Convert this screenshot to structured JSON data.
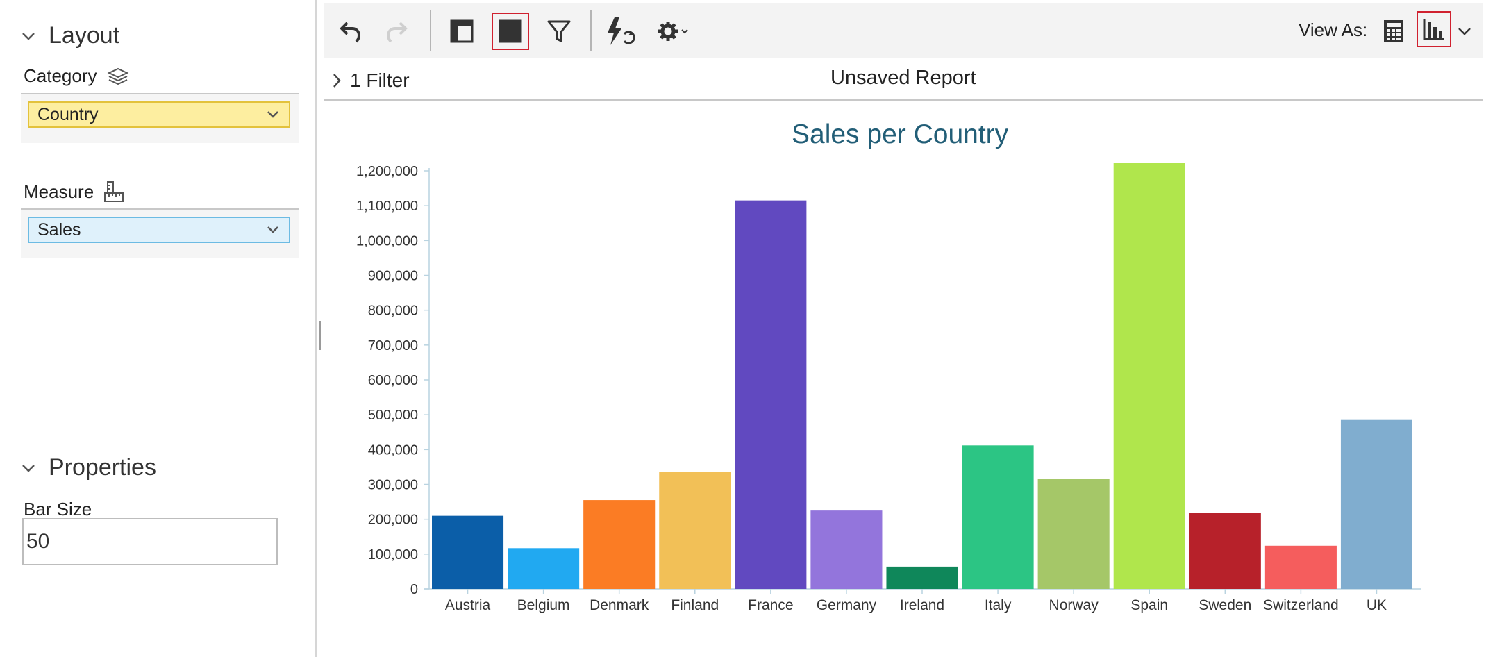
{
  "layout_panel": {
    "title": "Layout",
    "category_label": "Category",
    "category_value": "Country",
    "measure_label": "Measure",
    "measure_value": "Sales"
  },
  "properties_panel": {
    "title": "Properties",
    "bar_size_label": "Bar Size",
    "bar_size_value": "50"
  },
  "toolbar": {
    "view_as_label": "View As:",
    "buttons": [
      "undo-icon",
      "redo-icon",
      "layout-panel-icon",
      "properties-panel-icon",
      "filter-icon",
      "auto-refresh-icon",
      "settings-icon",
      "table-view-icon",
      "chart-view-icon",
      "chevron-down-icon"
    ],
    "active_color": "#d0212f"
  },
  "filter_bar": {
    "filter_text": "1 Filter",
    "report_title": "Unsaved Report"
  },
  "chart_data": {
    "type": "bar",
    "title": "Sales per Country",
    "xlabel": "",
    "ylabel": "",
    "categories": [
      "Austria",
      "Belgium",
      "Denmark",
      "Finland",
      "France",
      "Germany",
      "Ireland",
      "Italy",
      "Norway",
      "Spain",
      "Sweden",
      "Switzerland",
      "UK"
    ],
    "values": [
      210000,
      117000,
      255000,
      335000,
      1115000,
      225000,
      64000,
      412000,
      315000,
      1222000,
      218000,
      124000,
      485000
    ],
    "colors": [
      "#0b5ea8",
      "#21a9f1",
      "#fb7c24",
      "#f2c057",
      "#6149c0",
      "#9375dc",
      "#0f875a",
      "#2cc584",
      "#a5c768",
      "#b0e64c",
      "#b7212a",
      "#f55d5d",
      "#80adcf"
    ],
    "yticks": [
      0,
      100000,
      200000,
      300000,
      400000,
      500000,
      600000,
      700000,
      800000,
      900000,
      1000000,
      1100000,
      1200000
    ],
    "ytick_labels": [
      "0",
      "100,000",
      "200,000",
      "300,000",
      "400,000",
      "500,000",
      "600,000",
      "700,000",
      "800,000",
      "900,000",
      "1,000,000",
      "1,100,000",
      "1,200,000"
    ],
    "ylim": [
      0,
      1200000
    ],
    "grid": false,
    "legend": "none"
  }
}
